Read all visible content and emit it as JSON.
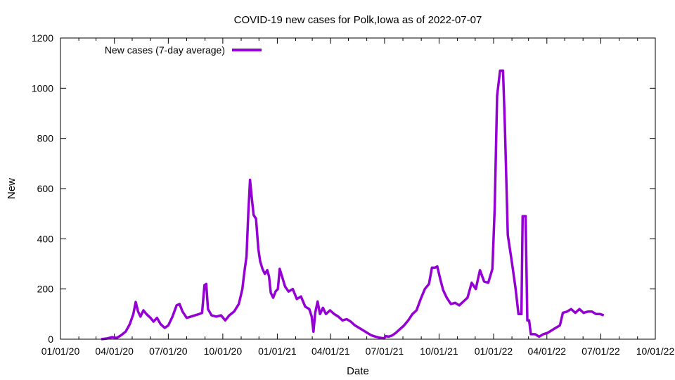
{
  "chart_data": {
    "type": "line",
    "title": "COVID-19 new cases for Polk,Iowa as of 2022-07-07",
    "xlabel": "Date",
    "ylabel": "New",
    "xlim": [
      "2020-01-01",
      "2022-10-01"
    ],
    "ylim": [
      0,
      1200
    ],
    "x_ticks": [
      "01/01/20",
      "04/01/20",
      "07/01/20",
      "10/01/20",
      "01/01/21",
      "04/01/21",
      "07/01/21",
      "10/01/21",
      "01/01/22",
      "04/01/22",
      "07/01/22",
      "10/01/22"
    ],
    "y_ticks": [
      0,
      200,
      400,
      600,
      800,
      1000,
      1200
    ],
    "grid": false,
    "legend_position": "top-left",
    "series": [
      {
        "name": "New cases (7-day average)",
        "color": "#9400d3",
        "points": [
          [
            "2020-03-10",
            0
          ],
          [
            "2020-03-20",
            3
          ],
          [
            "2020-03-28",
            8
          ],
          [
            "2020-04-05",
            5
          ],
          [
            "2020-04-12",
            15
          ],
          [
            "2020-04-20",
            30
          ],
          [
            "2020-04-27",
            60
          ],
          [
            "2020-05-03",
            100
          ],
          [
            "2020-05-07",
            148
          ],
          [
            "2020-05-11",
            110
          ],
          [
            "2020-05-15",
            90
          ],
          [
            "2020-05-20",
            115
          ],
          [
            "2020-05-25",
            100
          ],
          [
            "2020-06-01",
            85
          ],
          [
            "2020-06-06",
            70
          ],
          [
            "2020-06-12",
            85
          ],
          [
            "2020-06-18",
            60
          ],
          [
            "2020-06-25",
            45
          ],
          [
            "2020-07-01",
            55
          ],
          [
            "2020-07-08",
            90
          ],
          [
            "2020-07-15",
            135
          ],
          [
            "2020-07-20",
            140
          ],
          [
            "2020-07-25",
            110
          ],
          [
            "2020-08-01",
            85
          ],
          [
            "2020-08-08",
            90
          ],
          [
            "2020-08-15",
            95
          ],
          [
            "2020-08-22",
            100
          ],
          [
            "2020-08-27",
            105
          ],
          [
            "2020-08-31",
            215
          ],
          [
            "2020-09-03",
            220
          ],
          [
            "2020-09-06",
            120
          ],
          [
            "2020-09-12",
            95
          ],
          [
            "2020-09-20",
            90
          ],
          [
            "2020-09-28",
            95
          ],
          [
            "2020-10-05",
            75
          ],
          [
            "2020-10-12",
            95
          ],
          [
            "2020-10-20",
            110
          ],
          [
            "2020-10-28",
            140
          ],
          [
            "2020-11-03",
            200
          ],
          [
            "2020-11-06",
            260
          ],
          [
            "2020-11-10",
            330
          ],
          [
            "2020-11-13",
            500
          ],
          [
            "2020-11-16",
            635
          ],
          [
            "2020-11-19",
            560
          ],
          [
            "2020-11-22",
            495
          ],
          [
            "2020-11-26",
            480
          ],
          [
            "2020-11-30",
            360
          ],
          [
            "2020-12-03",
            310
          ],
          [
            "2020-12-07",
            280
          ],
          [
            "2020-12-11",
            260
          ],
          [
            "2020-12-15",
            275
          ],
          [
            "2020-12-18",
            250
          ],
          [
            "2020-12-21",
            185
          ],
          [
            "2020-12-25",
            165
          ],
          [
            "2020-12-29",
            190
          ],
          [
            "2021-01-02",
            200
          ],
          [
            "2021-01-05",
            280
          ],
          [
            "2021-01-09",
            250
          ],
          [
            "2021-01-14",
            210
          ],
          [
            "2021-01-20",
            190
          ],
          [
            "2021-01-27",
            200
          ],
          [
            "2021-02-03",
            160
          ],
          [
            "2021-02-10",
            170
          ],
          [
            "2021-02-17",
            130
          ],
          [
            "2021-02-24",
            120
          ],
          [
            "2021-02-28",
            90
          ],
          [
            "2021-03-03",
            30
          ],
          [
            "2021-03-06",
            105
          ],
          [
            "2021-03-10",
            150
          ],
          [
            "2021-03-14",
            100
          ],
          [
            "2021-03-19",
            125
          ],
          [
            "2021-03-24",
            100
          ],
          [
            "2021-03-31",
            115
          ],
          [
            "2021-04-07",
            100
          ],
          [
            "2021-04-14",
            90
          ],
          [
            "2021-04-21",
            75
          ],
          [
            "2021-04-28",
            80
          ],
          [
            "2021-05-05",
            70
          ],
          [
            "2021-05-12",
            55
          ],
          [
            "2021-05-19",
            45
          ],
          [
            "2021-05-26",
            35
          ],
          [
            "2021-06-02",
            25
          ],
          [
            "2021-06-09",
            15
          ],
          [
            "2021-06-16",
            10
          ],
          [
            "2021-06-23",
            6
          ],
          [
            "2021-06-30",
            3
          ],
          [
            "2021-07-03",
            12
          ],
          [
            "2021-07-08",
            10
          ],
          [
            "2021-07-14",
            15
          ],
          [
            "2021-07-20",
            25
          ],
          [
            "2021-07-27",
            40
          ],
          [
            "2021-08-03",
            55
          ],
          [
            "2021-08-10",
            75
          ],
          [
            "2021-08-17",
            100
          ],
          [
            "2021-08-24",
            115
          ],
          [
            "2021-08-31",
            160
          ],
          [
            "2021-09-07",
            200
          ],
          [
            "2021-09-14",
            220
          ],
          [
            "2021-09-19",
            285
          ],
          [
            "2021-09-24",
            285
          ],
          [
            "2021-09-28",
            290
          ],
          [
            "2021-10-03",
            240
          ],
          [
            "2021-10-08",
            195
          ],
          [
            "2021-10-14",
            165
          ],
          [
            "2021-10-21",
            140
          ],
          [
            "2021-10-28",
            145
          ],
          [
            "2021-11-04",
            135
          ],
          [
            "2021-11-11",
            150
          ],
          [
            "2021-11-18",
            165
          ],
          [
            "2021-11-25",
            225
          ],
          [
            "2021-12-02",
            200
          ],
          [
            "2021-12-09",
            275
          ],
          [
            "2021-12-16",
            230
          ],
          [
            "2021-12-23",
            225
          ],
          [
            "2021-12-30",
            280
          ],
          [
            "2022-01-03",
            525
          ],
          [
            "2022-01-07",
            970
          ],
          [
            "2022-01-12",
            1070
          ],
          [
            "2022-01-17",
            1070
          ],
          [
            "2022-01-20",
            855
          ],
          [
            "2022-01-25",
            415
          ],
          [
            "2022-02-01",
            305
          ],
          [
            "2022-02-07",
            205
          ],
          [
            "2022-02-12",
            100
          ],
          [
            "2022-02-17",
            100
          ],
          [
            "2022-02-19",
            490
          ],
          [
            "2022-02-24",
            490
          ],
          [
            "2022-02-27",
            75
          ],
          [
            "2022-03-02",
            75
          ],
          [
            "2022-03-05",
            20
          ],
          [
            "2022-03-12",
            20
          ],
          [
            "2022-03-19",
            10
          ],
          [
            "2022-03-26",
            20
          ],
          [
            "2022-04-02",
            25
          ],
          [
            "2022-04-09",
            35
          ],
          [
            "2022-04-16",
            45
          ],
          [
            "2022-04-23",
            55
          ],
          [
            "2022-04-28",
            105
          ],
          [
            "2022-05-05",
            110
          ],
          [
            "2022-05-12",
            120
          ],
          [
            "2022-05-19",
            105
          ],
          [
            "2022-05-26",
            120
          ],
          [
            "2022-06-02",
            105
          ],
          [
            "2022-06-09",
            110
          ],
          [
            "2022-06-16",
            110
          ],
          [
            "2022-06-23",
            100
          ],
          [
            "2022-06-30",
            100
          ],
          [
            "2022-07-06",
            95
          ]
        ]
      }
    ]
  }
}
